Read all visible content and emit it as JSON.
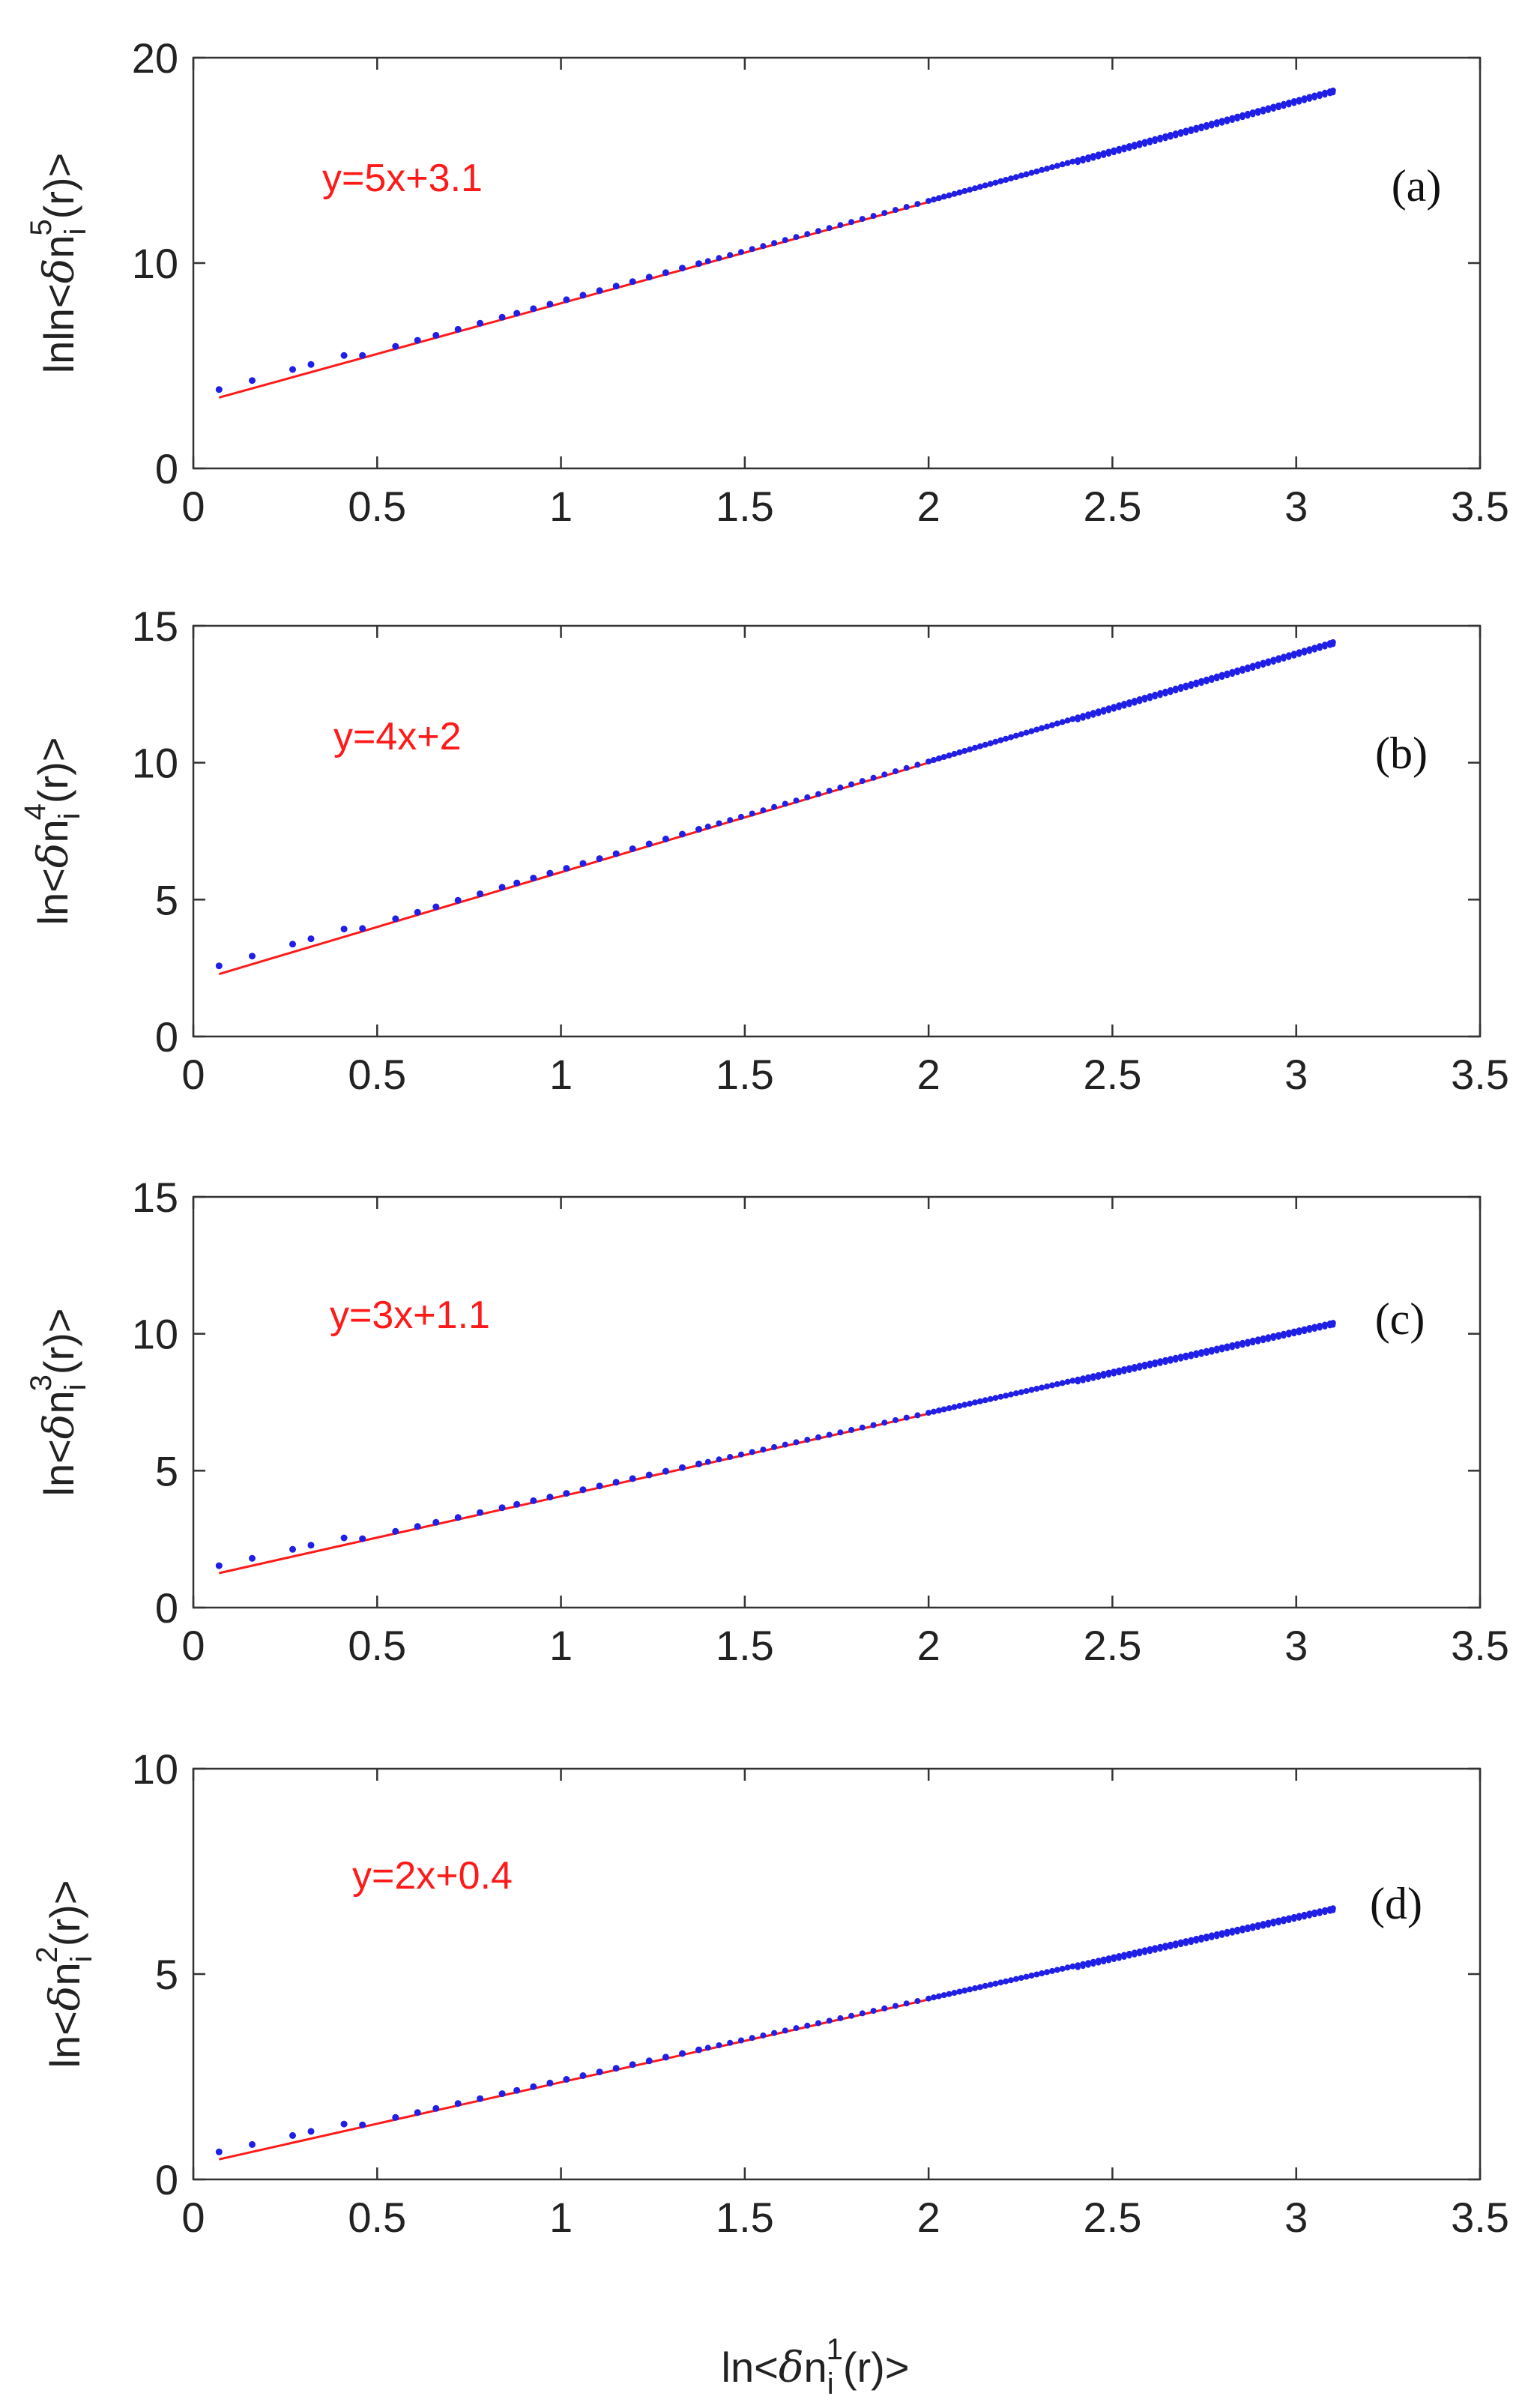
{
  "chart_data": [
    {
      "type": "scatter",
      "panel": "(a)",
      "ylabel": {
        "prefix": "lnln<",
        "delta": "δ",
        "base": "n",
        "sub": "i",
        "sup": "5",
        "suffix": "(r)>"
      },
      "xlim": [
        0,
        3.5
      ],
      "ylim": [
        0,
        20
      ],
      "yticks": [
        0,
        10,
        20
      ],
      "fit": {
        "label": "y=5x+3.1",
        "slope": 5,
        "intercept": 3.1
      },
      "series": [
        {
          "name": "data",
          "x_range": [
            0.07,
            3.1
          ],
          "y_start": 3.6,
          "y_end": 18.4
        }
      ]
    },
    {
      "type": "scatter",
      "panel": "(b)",
      "ylabel": {
        "prefix": "ln<",
        "delta": "δ",
        "base": "n",
        "sub": "i",
        "sup": "4",
        "suffix": "(r)>"
      },
      "xlim": [
        0,
        3.5
      ],
      "ylim": [
        0,
        15
      ],
      "yticks": [
        0,
        5,
        10,
        15
      ],
      "fit": {
        "label": "y=4x+2",
        "slope": 4,
        "intercept": 2
      },
      "series": [
        {
          "name": "data",
          "x_range": [
            0.07,
            3.1
          ],
          "y_start": 2.4,
          "y_end": 14.4
        }
      ]
    },
    {
      "type": "scatter",
      "panel": "(c)",
      "ylabel": {
        "prefix": "ln<",
        "delta": "δ",
        "base": "n",
        "sub": "i",
        "sup": "3",
        "suffix": "(r)>"
      },
      "xlim": [
        0,
        3.5
      ],
      "ylim": [
        0,
        15
      ],
      "yticks": [
        0,
        5,
        10,
        15
      ],
      "fit": {
        "label": "y=3x+1.1",
        "slope": 3,
        "intercept": 1.1
      },
      "series": [
        {
          "name": "data",
          "x_range": [
            0.07,
            3.1
          ],
          "y_start": 1.35,
          "y_end": 10.4
        }
      ]
    },
    {
      "type": "scatter",
      "panel": "(d)",
      "ylabel": {
        "prefix": "ln<",
        "delta": "δ",
        "base": "n",
        "sub": "i",
        "sup": "2",
        "suffix": "(r)>"
      },
      "xlim": [
        0,
        3.5
      ],
      "ylim": [
        0,
        10
      ],
      "yticks": [
        0,
        5,
        10
      ],
      "fit": {
        "label": "y=2x+0.4",
        "slope": 2,
        "intercept": 0.4
      },
      "series": [
        {
          "name": "data",
          "x_range": [
            0.07,
            3.1
          ],
          "y_start": 0.55,
          "y_end": 6.6
        }
      ]
    }
  ],
  "xticks": [
    0,
    0.5,
    1,
    1.5,
    2,
    2.5,
    3,
    3.5
  ],
  "xticklabels": [
    "0",
    "0.5",
    "1",
    "1.5",
    "2",
    "2.5",
    "3",
    "3.5"
  ],
  "xlabel": {
    "prefix": "ln<",
    "delta": "δ",
    "base": "n",
    "sub": "i",
    "sup": "1",
    "suffix": "(r)>"
  },
  "colors": {
    "points": "#1f1fe6",
    "fit": "#ff1a1a",
    "equation": "#ff1a1a",
    "axis": "#333333"
  }
}
